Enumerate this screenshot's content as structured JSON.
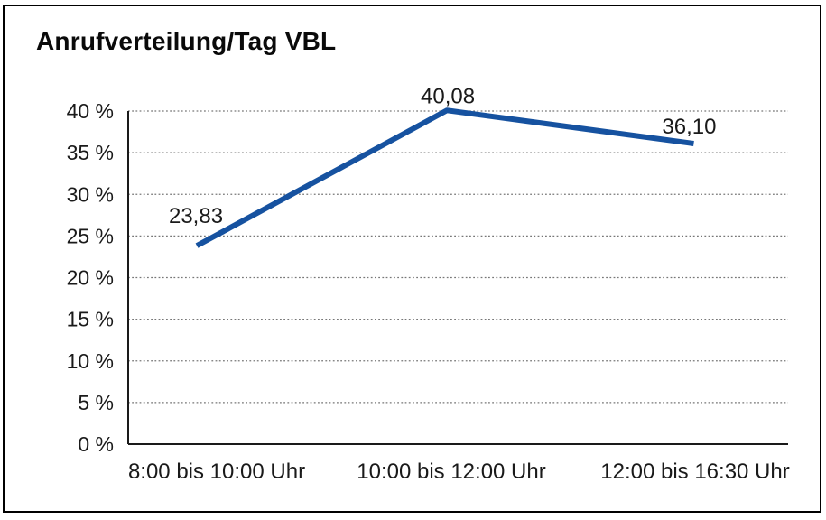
{
  "chart_data": {
    "type": "line",
    "title": "Anrufverteilung/Tag VBL",
    "categories": [
      "8:00 bis 10:00 Uhr",
      "10:00 bis 12:00 Uhr",
      "12:00 bis 16:30 Uhr"
    ],
    "values": [
      23.83,
      40.08,
      36.1
    ],
    "value_labels": [
      "23,83",
      "40,08",
      "36,10"
    ],
    "yticks": [
      0,
      5,
      10,
      15,
      20,
      25,
      30,
      35,
      40
    ],
    "ytick_labels": [
      "0 %",
      "5 %",
      "10 %",
      "15 %",
      "20 %",
      "25 %",
      "30 %",
      "35 %",
      "40 %"
    ],
    "ylim": [
      0,
      40
    ],
    "xlabel": "",
    "ylabel": "",
    "legend": "none",
    "grid": "horizontal-dotted",
    "line_color": "#1652A0",
    "grid_color": "#777777",
    "axis_color": "#1a1a1a",
    "text_color": "#1a1a1a",
    "background_color": "#ffffff",
    "border_color": "#000000"
  }
}
